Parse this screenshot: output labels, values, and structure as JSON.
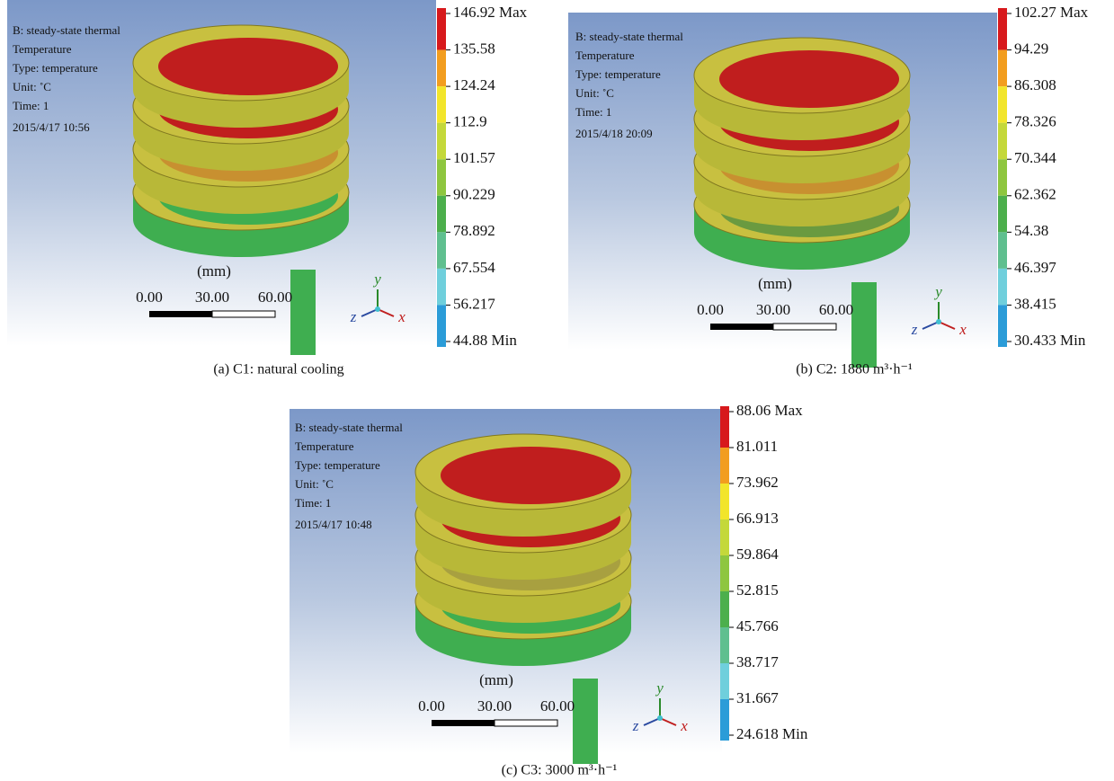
{
  "panels": [
    {
      "info": [
        "B: steady-state thermal",
        "Temperature",
        "Type: temperature",
        "Unit: ˚C",
        "Time: 1",
        "2015/4/17 10:56"
      ],
      "scale_unit": "(mm)",
      "scale_labels": [
        "0.00",
        "30.00",
        "60.00"
      ],
      "axes": [
        "y",
        "z",
        "x"
      ],
      "legend": [
        "146.92 Max",
        "135.58",
        "124.24",
        "112.9",
        "101.57",
        "90.229",
        "78.892",
        "67.554",
        "56.217",
        "44.88 Min"
      ],
      "caption": "(a)  C1: natural cooling"
    },
    {
      "info": [
        "B: steady-state thermal",
        "Temperature",
        "Type: temperature",
        "Unit: ˚C",
        "Time: 1",
        "2015/4/18 20:09"
      ],
      "scale_unit": "(mm)",
      "scale_labels": [
        "0.00",
        "30.00",
        "60.00"
      ],
      "axes": [
        "y",
        "z",
        "x"
      ],
      "legend": [
        "102.27 Max",
        "94.29",
        "86.308",
        "78.326",
        "70.344",
        "62.362",
        "54.38",
        "46.397",
        "38.415",
        "30.433 Min"
      ],
      "caption": "(b)  C2: 1880 m³·h⁻¹"
    },
    {
      "info": [
        "B: steady-state thermal",
        "Temperature",
        "Type: temperature",
        "Unit: ˚C",
        "Time: 1",
        "2015/4/17 10:48"
      ],
      "scale_unit": "(mm)",
      "scale_labels": [
        "0.00",
        "30.00",
        "60.00"
      ],
      "axes": [
        "y",
        "z",
        "x"
      ],
      "legend": [
        "88.06 Max",
        "81.011",
        "73.962",
        "66.913",
        "59.864",
        "52.815",
        "45.766",
        "38.717",
        "31.667",
        "24.618 Min"
      ],
      "caption": "(c)  C3: 3000 m³·h⁻¹"
    }
  ]
}
